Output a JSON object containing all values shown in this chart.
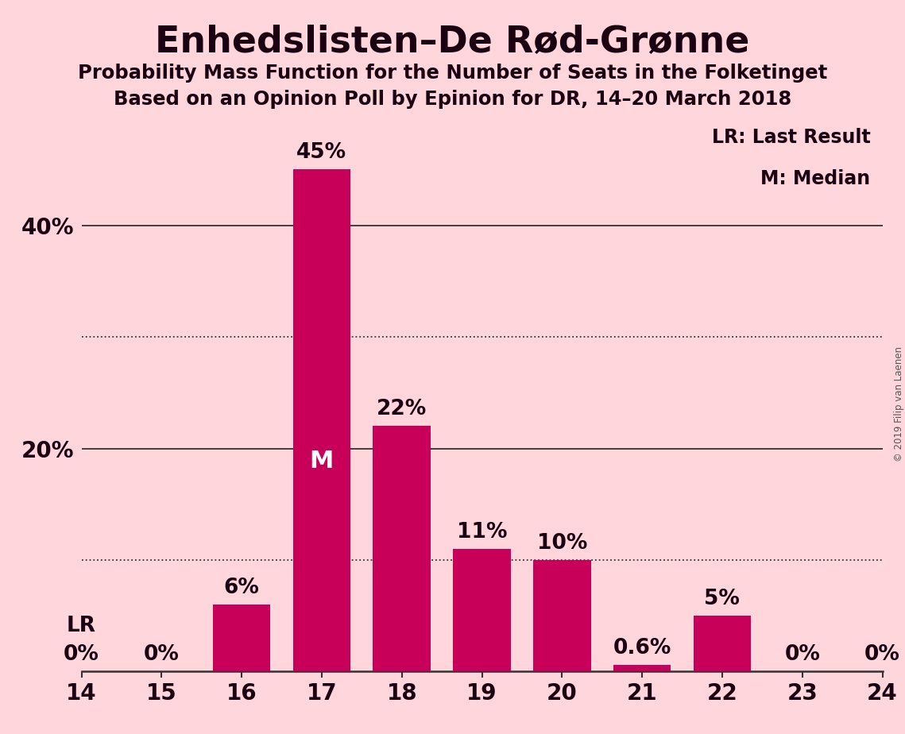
{
  "title": "Enhedslisten–De Rød-Grønne",
  "subtitle1": "Probability Mass Function for the Number of Seats in the Folketinget",
  "subtitle2": "Based on an Opinion Poll by Epinion for DR, 14–20 March 2018",
  "categories": [
    14,
    15,
    16,
    17,
    18,
    19,
    20,
    21,
    22,
    23,
    24
  ],
  "values": [
    0.0,
    0.0,
    6.0,
    45.0,
    22.0,
    11.0,
    10.0,
    0.6,
    5.0,
    0.0,
    0.0
  ],
  "labels": [
    "0%",
    "0%",
    "6%",
    "45%",
    "22%",
    "11%",
    "10%",
    "0.6%",
    "5%",
    "0%",
    "0%"
  ],
  "bar_color": "#C8005A",
  "background_color": "#FFD6DC",
  "text_color": "#1a0010",
  "median_bar": 17,
  "lr_bar": 14,
  "legend_text1": "LR: Last Result",
  "legend_text2": "M: Median",
  "median_label": "M",
  "lr_label": "LR",
  "copyright": "© 2019 Filip van Laenen",
  "ylim": [
    0,
    50
  ],
  "ytick_positions": [
    20,
    40
  ],
  "ytick_labels": [
    "20%",
    "40%"
  ],
  "dotted_ticks": [
    10,
    30
  ],
  "solid_ticks": [
    20,
    40
  ]
}
